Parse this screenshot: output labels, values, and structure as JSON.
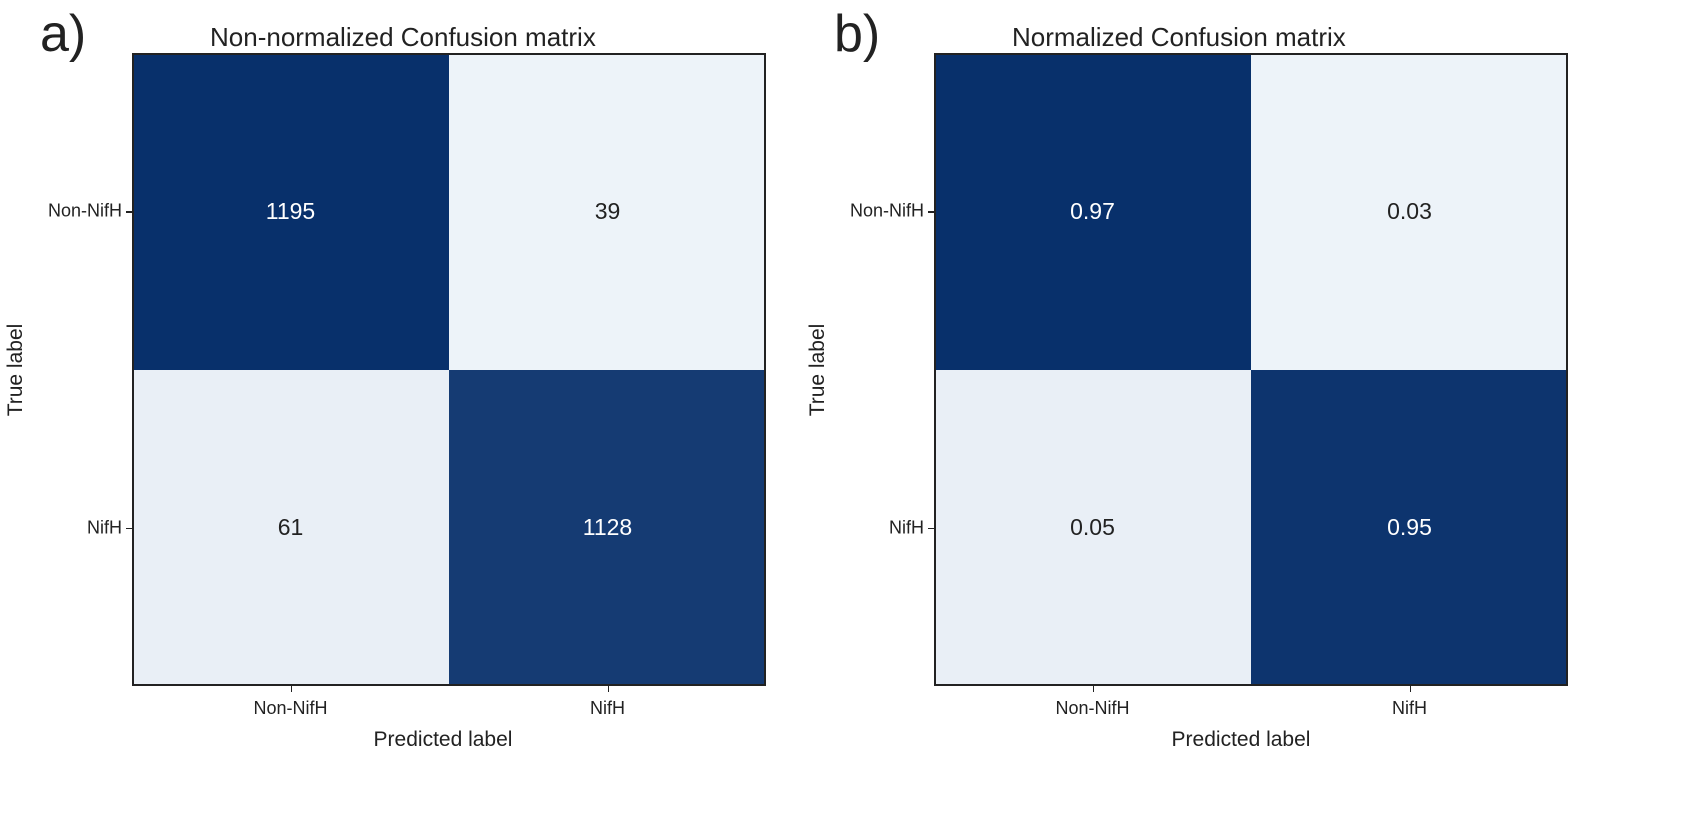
{
  "chart_data": [
    {
      "type": "heatmap",
      "panel_label": "a)",
      "title": "Non-normalized Confusion matrix",
      "xlabel": "Predicted label",
      "ylabel": "True label",
      "x_categories": [
        "Non-NifH",
        "NifH"
      ],
      "y_categories": [
        "Non-NifH",
        "NifH"
      ],
      "values": [
        [
          1195,
          39
        ],
        [
          61,
          1128
        ]
      ],
      "cell_labels": [
        [
          "1195",
          "39"
        ],
        [
          "61",
          "1128"
        ]
      ],
      "colormap": "Blues",
      "colors": {
        "high": "#08306b",
        "low": "#f7fbff",
        "text_on_dark": "#ffffff",
        "text_on_light": "#222222"
      }
    },
    {
      "type": "heatmap",
      "panel_label": "b)",
      "title": "Normalized Confusion matrix",
      "xlabel": "Predicted label",
      "ylabel": "True label",
      "x_categories": [
        "Non-NifH",
        "NifH"
      ],
      "y_categories": [
        "Non-NifH",
        "NifH"
      ],
      "values": [
        [
          0.97,
          0.03
        ],
        [
          0.05,
          0.95
        ]
      ],
      "cell_labels": [
        [
          "0.97",
          "0.03"
        ],
        [
          "0.05",
          "0.95"
        ]
      ],
      "colormap": "Blues",
      "colors": {
        "high": "#08306b",
        "low": "#f7fbff",
        "text_on_dark": "#ffffff",
        "text_on_light": "#222222"
      }
    }
  ]
}
